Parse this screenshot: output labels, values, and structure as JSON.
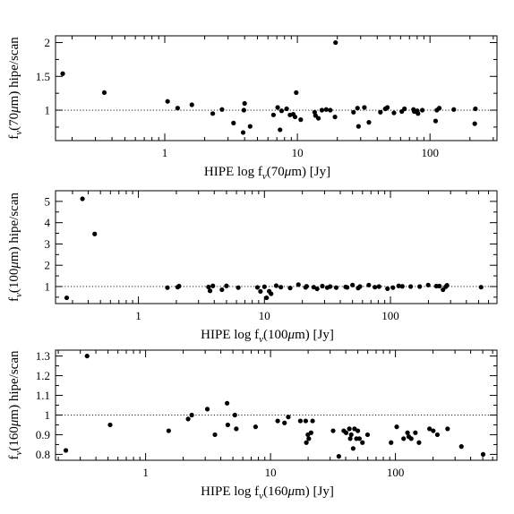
{
  "chart_data": [
    {
      "type": "scatter",
      "xscale": "log",
      "xlim": [
        0.15,
        320
      ],
      "ylim": [
        0.55,
        2.1
      ],
      "xlabel": "HIPE log f_ν(70μm) [Jy]",
      "ylabel": "f_ν(70μm) hipe/scan",
      "xlabel_parts": [
        "HIPE  log  f",
        "ν",
        "(70",
        "μ",
        "m)  [Jy]"
      ],
      "ylabel_parts": [
        "f",
        "ν",
        "(70",
        "μ",
        "m)  hipe/scan"
      ],
      "xticks": [
        1,
        10,
        100
      ],
      "xtick_labels": [
        "1",
        "10",
        "100"
      ],
      "yticks": [
        1,
        1.5,
        2
      ],
      "ytick_labels": [
        "1",
        "1.5",
        "2"
      ],
      "reference_line": 1,
      "grid": false,
      "x": [
        0.17,
        0.35,
        1.05,
        1.25,
        1.6,
        2.3,
        2.7,
        3.3,
        3.9,
        3.95,
        4.0,
        4.4,
        6.6,
        7.1,
        7.4,
        7.6,
        8.3,
        8.8,
        9.3,
        9.6,
        9.8,
        10.6,
        13.5,
        13.7,
        14.4,
        15.3,
        16.5,
        17.7,
        19.2,
        19.4,
        26.5,
        28.4,
        28.9,
        32.0,
        34.6,
        42.3,
        46.0,
        47.7,
        53.5,
        61.3,
        64.2,
        75.1,
        76.1,
        80.2,
        81.2,
        87.5,
        110.2,
        112.6,
        117.6,
        151.2,
        217.5,
        220.0
      ],
      "y": [
        1.54,
        1.26,
        1.13,
        1.03,
        1.08,
        0.95,
        1.01,
        0.81,
        0.67,
        1.0,
        1.1,
        0.76,
        0.93,
        1.04,
        0.71,
        0.99,
        1.02,
        0.93,
        0.94,
        0.9,
        1.26,
        0.86,
        0.97,
        0.92,
        0.88,
        1.0,
        1.01,
        1.0,
        0.9,
        2.0,
        0.97,
        1.03,
        0.76,
        1.04,
        0.82,
        0.97,
        1.02,
        1.04,
        0.96,
        0.98,
        1.02,
        1.01,
        0.98,
        0.99,
        0.95,
        1.0,
        0.84,
        1.0,
        1.03,
        1.01,
        0.8,
        1.02
      ]
    },
    {
      "type": "scatter",
      "xscale": "log",
      "xlim": [
        0.22,
        700
      ],
      "ylim": [
        0.2,
        5.5
      ],
      "xlabel": "HIPE log f_ν(100μm) [Jy]",
      "ylabel": "f_ν(100μm) hipe/scan",
      "xlabel_parts": [
        "HIPE  log  f",
        "ν",
        "(100",
        "μ",
        "m)  [Jy]"
      ],
      "ylabel_parts": [
        "f",
        "ν",
        "(100",
        "μ",
        "m)  hipe/scan"
      ],
      "xticks": [
        1,
        10,
        100
      ],
      "xtick_labels": [
        "1",
        "10",
        "100"
      ],
      "yticks": [
        1,
        2,
        3,
        4,
        5
      ],
      "ytick_labels": [
        "1",
        "2",
        "3",
        "4",
        "5"
      ],
      "reference_line": 1,
      "grid": false,
      "x": [
        0.27,
        0.36,
        0.45,
        1.7,
        2.1,
        2.05,
        3.6,
        3.7,
        3.9,
        4.6,
        5.0,
        6.2,
        8.8,
        9.3,
        10.0,
        10.4,
        10.9,
        11.3,
        12.4,
        13.5,
        16.0,
        18.6,
        21.2,
        21.6,
        24.6,
        26.2,
        28.8,
        31.5,
        33.2,
        37.1,
        44.1,
        45.3,
        50.0,
        55.4,
        57.3,
        67.3,
        75.3,
        81.1,
        94.7,
        104.6,
        116.2,
        124.1,
        144.7,
        170.6,
        199.2,
        231.4,
        244.6,
        261.2,
        274.7,
        280.8,
        523.6
      ],
      "y": [
        0.47,
        5.12,
        3.47,
        0.95,
        1.02,
        0.97,
        0.98,
        0.8,
        1.03,
        0.85,
        1.03,
        0.95,
        0.96,
        0.77,
        0.99,
        0.47,
        0.78,
        0.66,
        1.04,
        0.97,
        0.93,
        1.09,
        0.96,
        1.01,
        0.97,
        0.89,
        1.02,
        0.95,
        1.0,
        0.95,
        0.98,
        0.96,
        1.07,
        0.93,
        1.0,
        1.07,
        0.97,
        1.0,
        0.9,
        0.95,
        1.03,
        1.01,
        1.0,
        1.0,
        1.07,
        1.02,
        1.02,
        0.85,
        0.99,
        1.06,
        0.97
      ]
    },
    {
      "type": "scatter",
      "xscale": "log",
      "xlim": [
        0.19,
        650
      ],
      "ylim": [
        0.77,
        1.33
      ],
      "xlabel": "HIPE log f_ν(160μm) [Jy]",
      "ylabel": "f_ν(160μm) hipe/scan",
      "xlabel_parts": [
        "HIPE  log  f",
        "ν",
        "(160",
        "μ",
        "m)  [Jy]"
      ],
      "ylabel_parts": [
        "f",
        "ν",
        "(160",
        "μ",
        "m)  hipe/scan"
      ],
      "xticks": [
        1,
        10,
        100
      ],
      "xtick_labels": [
        "1",
        "10",
        "100"
      ],
      "yticks": [
        0.8,
        0.9,
        1,
        1.1,
        1.2,
        1.3
      ],
      "ytick_labels": [
        "0.8",
        "0.9",
        "1",
        "1.1",
        "1.2",
        "1.3"
      ],
      "reference_line": 1,
      "grid": false,
      "x": [
        0.23,
        0.34,
        0.52,
        1.53,
        2.19,
        2.34,
        3.12,
        3.59,
        4.49,
        4.55,
        5.18,
        5.32,
        7.59,
        11.41,
        12.94,
        13.88,
        17.33,
        19.13,
        19.36,
        19.91,
        20.24,
        21.11,
        21.71,
        31.71,
        35.22,
        38.56,
        40.27,
        42.76,
        43.45,
        44.28,
        45.88,
        47.04,
        48.71,
        50.0,
        51.49,
        54.44,
        59.84,
        92.29,
        102.38,
        116.25,
        124.93,
        127.86,
        133.79,
        144.39,
        154.35,
        187.38,
        200.76,
        216.64,
        261.39,
        337.21,
        503.44
      ],
      "y": [
        0.82,
        1.3,
        0.95,
        0.92,
        0.98,
        1.0,
        1.03,
        0.9,
        1.06,
        0.95,
        1.0,
        0.93,
        0.94,
        0.97,
        0.96,
        0.99,
        0.97,
        0.97,
        0.86,
        0.9,
        0.88,
        0.91,
        0.97,
        0.92,
        0.79,
        0.92,
        0.91,
        0.93,
        0.88,
        0.9,
        0.83,
        0.93,
        0.88,
        0.92,
        0.88,
        0.86,
        0.9,
        0.86,
        0.94,
        0.88,
        0.91,
        0.89,
        0.88,
        0.91,
        0.86,
        0.93,
        0.92,
        0.9,
        0.93,
        0.84,
        0.8
      ]
    }
  ]
}
